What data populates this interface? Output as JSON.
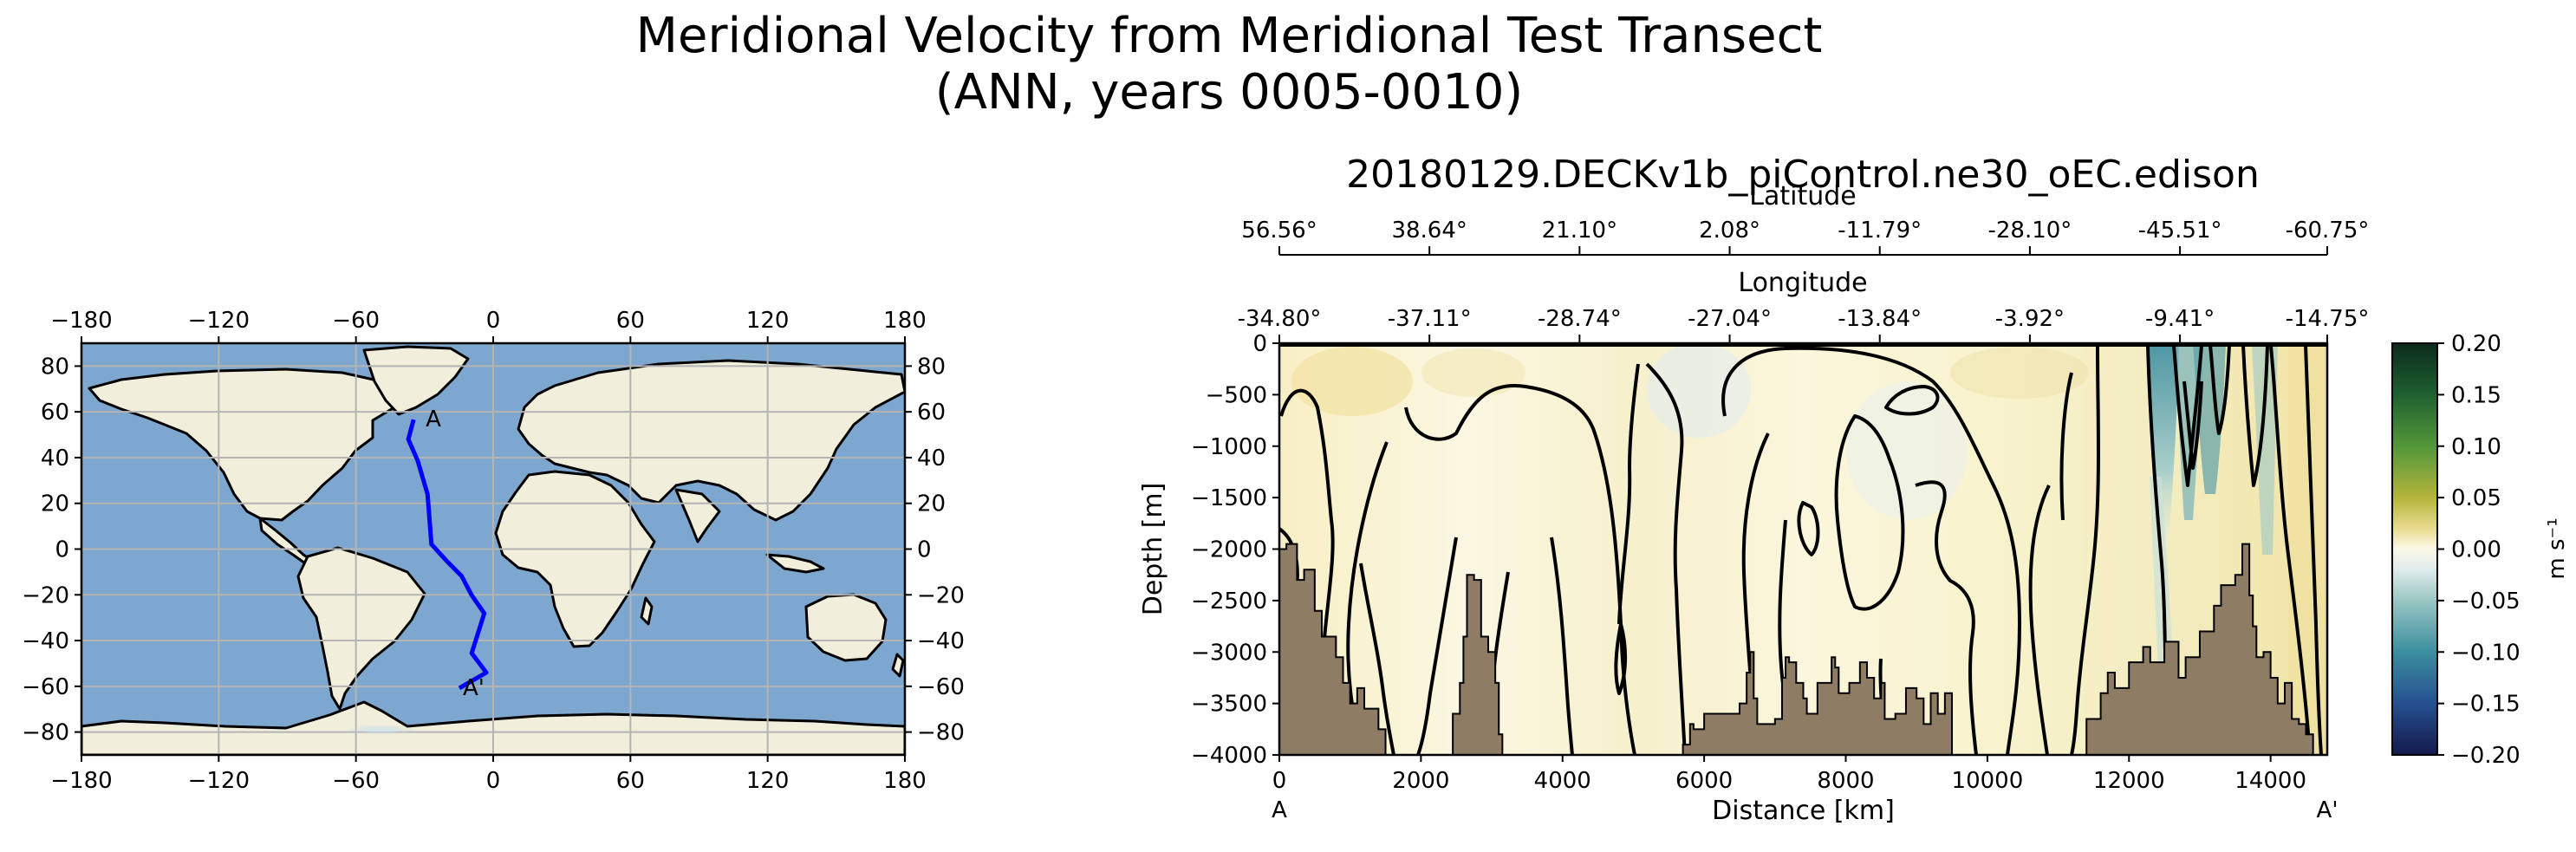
{
  "figure": {
    "title_line1": "Meridional Velocity from Meridional Test Transect",
    "title_line2": "(ANN, years 0005-0010)"
  },
  "colors": {
    "ocean": "#7ea7cf",
    "land": "#f1eedb",
    "transect": "#0000ff",
    "bathymetry": "#8f7c64",
    "field_base": "#fbf8dc",
    "contour": "#000000",
    "grid": "#b4b4b4"
  },
  "map": {
    "start_label": "A",
    "end_label": "A'"
  },
  "section": {
    "title": "20180129.DECKv1b_piControl.ne30_oEC.edison",
    "latitude_axis_label": "Latitude",
    "longitude_axis_label": "Longitude",
    "start_label": "A",
    "end_label": "A'"
  },
  "colorbar": {
    "label": "m s⁻¹"
  },
  "chart_data": [
    {
      "type": "map",
      "panel": "transect-location-map",
      "projection": "plate-carree",
      "xlim": [
        -180,
        180
      ],
      "ylim": [
        -90,
        90
      ],
      "xticks": [
        -180,
        -120,
        -60,
        0,
        60,
        120,
        180
      ],
      "yticks": [
        -80,
        -60,
        -40,
        -20,
        0,
        20,
        40,
        60,
        80
      ],
      "xtick_labels": [
        "−180",
        "−120",
        "−60",
        "0",
        "60",
        "120",
        "180"
      ],
      "ytick_labels": [
        "−80",
        "−60",
        "−40",
        "−20",
        "0",
        "20",
        "40",
        "60",
        "80"
      ],
      "grid": true,
      "transect": {
        "lon": [
          -34.8,
          -37.1,
          -33,
          -28.7,
          -27,
          -20.5,
          -13.8,
          -9.5,
          -3.9,
          -9.4,
          -3,
          -14.8
        ],
        "lat": [
          56.6,
          48,
          38.6,
          24,
          2.1,
          -5,
          -11.8,
          -20,
          -28.1,
          -45.5,
          -54,
          -60.8
        ]
      }
    },
    {
      "type": "heatmap",
      "panel": "velocity-section",
      "title": "20180129.DECKv1b_piControl.ne30_oEC.edison",
      "xlabel": "Distance [km]",
      "ylabel": "Depth [m]",
      "xlim": [
        0,
        14800
      ],
      "ylim": [
        -4000,
        0
      ],
      "xticks": [
        0,
        2000,
        4000,
        6000,
        8000,
        10000,
        12000,
        14000
      ],
      "yticks": [
        0,
        -500,
        -1000,
        -1500,
        -2000,
        -2500,
        -3000,
        -3500,
        -4000
      ],
      "xtick_labels": [
        "0",
        "2000",
        "4000",
        "6000",
        "8000",
        "10000",
        "12000",
        "14000"
      ],
      "ytick_labels": [
        "0",
        "−500",
        "−1000",
        "−1500",
        "−2000",
        "−2500",
        "−3000",
        "−3500",
        "−4000"
      ],
      "secondary_axes": [
        {
          "label": "Latitude",
          "tick_distances": [
            0,
            2120,
            4240,
            6360,
            8480,
            10600,
            12720,
            14800
          ],
          "tick_labels": [
            "56.56°",
            "38.64°",
            "21.10°",
            "2.08°",
            "-11.79°",
            "-28.10°",
            "-45.51°",
            "-60.75°"
          ]
        },
        {
          "label": "Longitude",
          "tick_distances": [
            0,
            2120,
            4240,
            6360,
            8480,
            10600,
            12720,
            14800
          ],
          "tick_labels": [
            "-34.80°",
            "-37.11°",
            "-28.74°",
            "-27.04°",
            "-13.84°",
            "-3.92°",
            "-9.41°",
            "-14.75°"
          ]
        }
      ],
      "colorbar": {
        "label": "m s⁻¹",
        "vmin": -0.2,
        "vmax": 0.2,
        "ticks": [
          0.2,
          0.15,
          0.1,
          0.05,
          0.0,
          -0.05,
          -0.1,
          -0.15,
          -0.2
        ],
        "tick_labels": [
          "0.20",
          "0.15",
          "0.10",
          "0.05",
          "0.00",
          "−0.05",
          "−0.10",
          "−0.15",
          "−0.20"
        ],
        "colormap_stops": [
          {
            "value": 0.2,
            "color": "#0b2a1c"
          },
          {
            "value": 0.15,
            "color": "#1f6130"
          },
          {
            "value": 0.1,
            "color": "#53973a"
          },
          {
            "value": 0.05,
            "color": "#b4b43c"
          },
          {
            "value": 0.02,
            "color": "#e9dc8f"
          },
          {
            "value": 0.0,
            "color": "#fbf8e9"
          },
          {
            "value": -0.02,
            "color": "#e0ecec"
          },
          {
            "value": -0.05,
            "color": "#99c6c2"
          },
          {
            "value": -0.1,
            "color": "#3c8ea0"
          },
          {
            "value": -0.15,
            "color": "#25508f"
          },
          {
            "value": -0.2,
            "color": "#15194b"
          }
        ]
      },
      "bathymetry_profile": {
        "distance_km": [
          0,
          100,
          250,
          350,
          500,
          600,
          800,
          900,
          1000,
          1100,
          1200,
          1400,
          1500,
          2400,
          2450,
          2550,
          2600,
          2650,
          2750,
          2850,
          2950,
          3050,
          3100,
          3150,
          3600,
          5600,
          5700,
          5800,
          5850,
          6000,
          6500,
          6600,
          6650,
          6700,
          6750,
          7000,
          7100,
          7150,
          7200,
          7300,
          7400,
          7450,
          7600,
          7800,
          7850,
          7900,
          8050,
          8200,
          8300,
          8400,
          8500,
          8550,
          8700,
          8850,
          9000,
          9100,
          9200,
          9300,
          9400,
          9500,
          11200,
          11400,
          11600,
          11700,
          11800,
          12000,
          12200,
          12300,
          12500,
          12700,
          12800,
          13000,
          13200,
          13300,
          13500,
          13600,
          13700,
          13750,
          13800,
          13900,
          14000,
          14100,
          14200,
          14300,
          14400,
          14500,
          14600,
          14800
        ],
        "depth_m": [
          -2000,
          -1950,
          -2300,
          -2200,
          -2600,
          -2850,
          -3050,
          -3300,
          -3500,
          -3350,
          -3550,
          -3750,
          -4000,
          -4000,
          -3600,
          -3300,
          -2850,
          -2250,
          -2300,
          -2850,
          -3000,
          -3300,
          -3800,
          -4000,
          -4000,
          -4000,
          -3900,
          -3700,
          -3750,
          -3600,
          -3500,
          -3200,
          -3000,
          -3450,
          -3700,
          -3650,
          -3250,
          -3050,
          -3100,
          -3300,
          -3450,
          -3600,
          -3300,
          -3050,
          -3150,
          -3400,
          -3300,
          -3100,
          -3250,
          -3450,
          -3300,
          -3650,
          -3600,
          -3350,
          -3450,
          -3700,
          -3400,
          -3600,
          -3400,
          -4000,
          -4000,
          -3650,
          -3400,
          -3200,
          -3350,
          -3100,
          -2950,
          -3100,
          -2900,
          -3250,
          -3050,
          -2800,
          -2550,
          -2350,
          -2250,
          -1950,
          -2450,
          -2750,
          -3050,
          -3000,
          -3250,
          -3500,
          -3300,
          -3650,
          -3700,
          -3800,
          -4000,
          -4000
        ]
      }
    }
  ]
}
